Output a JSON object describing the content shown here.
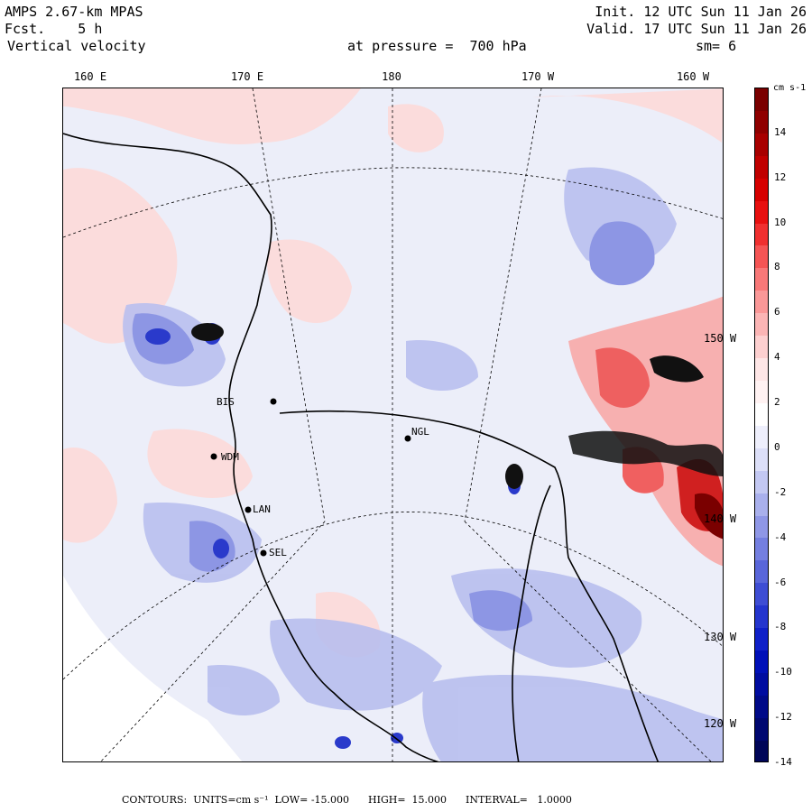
{
  "header": {
    "model": "AMPS 2.67-km MPAS",
    "forecast": "Fcst.    5 h",
    "field": "Vertical velocity",
    "init": "Init. 12 UTC Sun 11 Jan 26",
    "valid": "Valid. 17 UTC Sun 11 Jan 26",
    "pressure": "at pressure =  700 hPa",
    "smoothing": "sm= 6"
  },
  "longitude_labels": [
    "160 E",
    "170 E",
    "180",
    "170 W",
    "160 W"
  ],
  "latitude_labels": [
    "150 W",
    "140 W",
    "130 W",
    "120 W"
  ],
  "stations": [
    "BIS",
    "NGL",
    "LAN",
    "SEL",
    "WDM"
  ],
  "colorbar": {
    "unit": "cm s-1",
    "labels": [
      "14",
      "12",
      "10",
      "8",
      "6",
      "4",
      "2",
      "0",
      "-2",
      "-4",
      "-6",
      "-8",
      "-10",
      "-12",
      "-14"
    ],
    "colors": [
      "#7a0000",
      "#8f0000",
      "#a80000",
      "#c00000",
      "#d60000",
      "#e81010",
      "#f03030",
      "#f55555",
      "#f87878",
      "#fa9898",
      "#fbb5b5",
      "#fdd0d0",
      "#fee6e6",
      "#fff2f2",
      "#ffffff",
      "#eeeffc",
      "#dcdff8",
      "#c3c8f2",
      "#a9b0ec",
      "#8f97e6",
      "#747fe0",
      "#5966da",
      "#3e4dd4",
      "#2435ce",
      "#0f20c8",
      "#0010b8",
      "#000ca0",
      "#000a88",
      "#000870",
      "#000658"
    ]
  },
  "footer": "CONTOURS:  UNITS=cm s⁻¹  LOW= -15.000      HIGH=  15.000      INTERVAL=   1.0000",
  "colors": {
    "positive": "#f4a0a0",
    "negative": "#7f88e0",
    "background_field": "#eceef9"
  }
}
